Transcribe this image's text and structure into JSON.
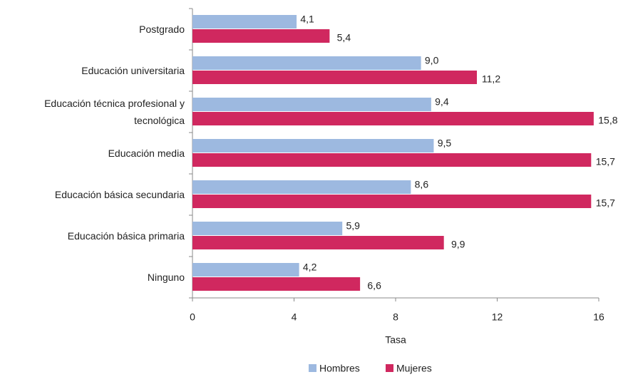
{
  "chart_data": {
    "type": "bar",
    "orientation": "horizontal",
    "x_label": "Tasa",
    "categories": [
      "Postgrado",
      "Educación universitaria",
      "Educación técnica profesional y tecnológica",
      "Educación media",
      "Educación básica secundaria",
      "Educación básica primaria",
      "Ninguno"
    ],
    "series": [
      {
        "name": "Hombres",
        "color": "#9db9e0",
        "values": [
          4.1,
          9.0,
          9.4,
          9.5,
          8.6,
          5.9,
          4.2
        ],
        "value_labels": [
          "4,1",
          "9,0",
          "9,4",
          "9,5",
          "8,6",
          "5,9",
          "4,2"
        ]
      },
      {
        "name": "Mujeres",
        "color": "#d0285f",
        "values": [
          5.4,
          11.2,
          15.8,
          15.7,
          15.7,
          9.9,
          6.6
        ],
        "value_labels": [
          "5,4",
          "11,2",
          "15,8",
          "15,7",
          "15,7",
          "9,9",
          "6,6"
        ]
      }
    ],
    "xlim": [
      0,
      16
    ],
    "xticks": [
      0,
      4,
      8,
      12,
      16
    ],
    "legend": "bottom"
  }
}
